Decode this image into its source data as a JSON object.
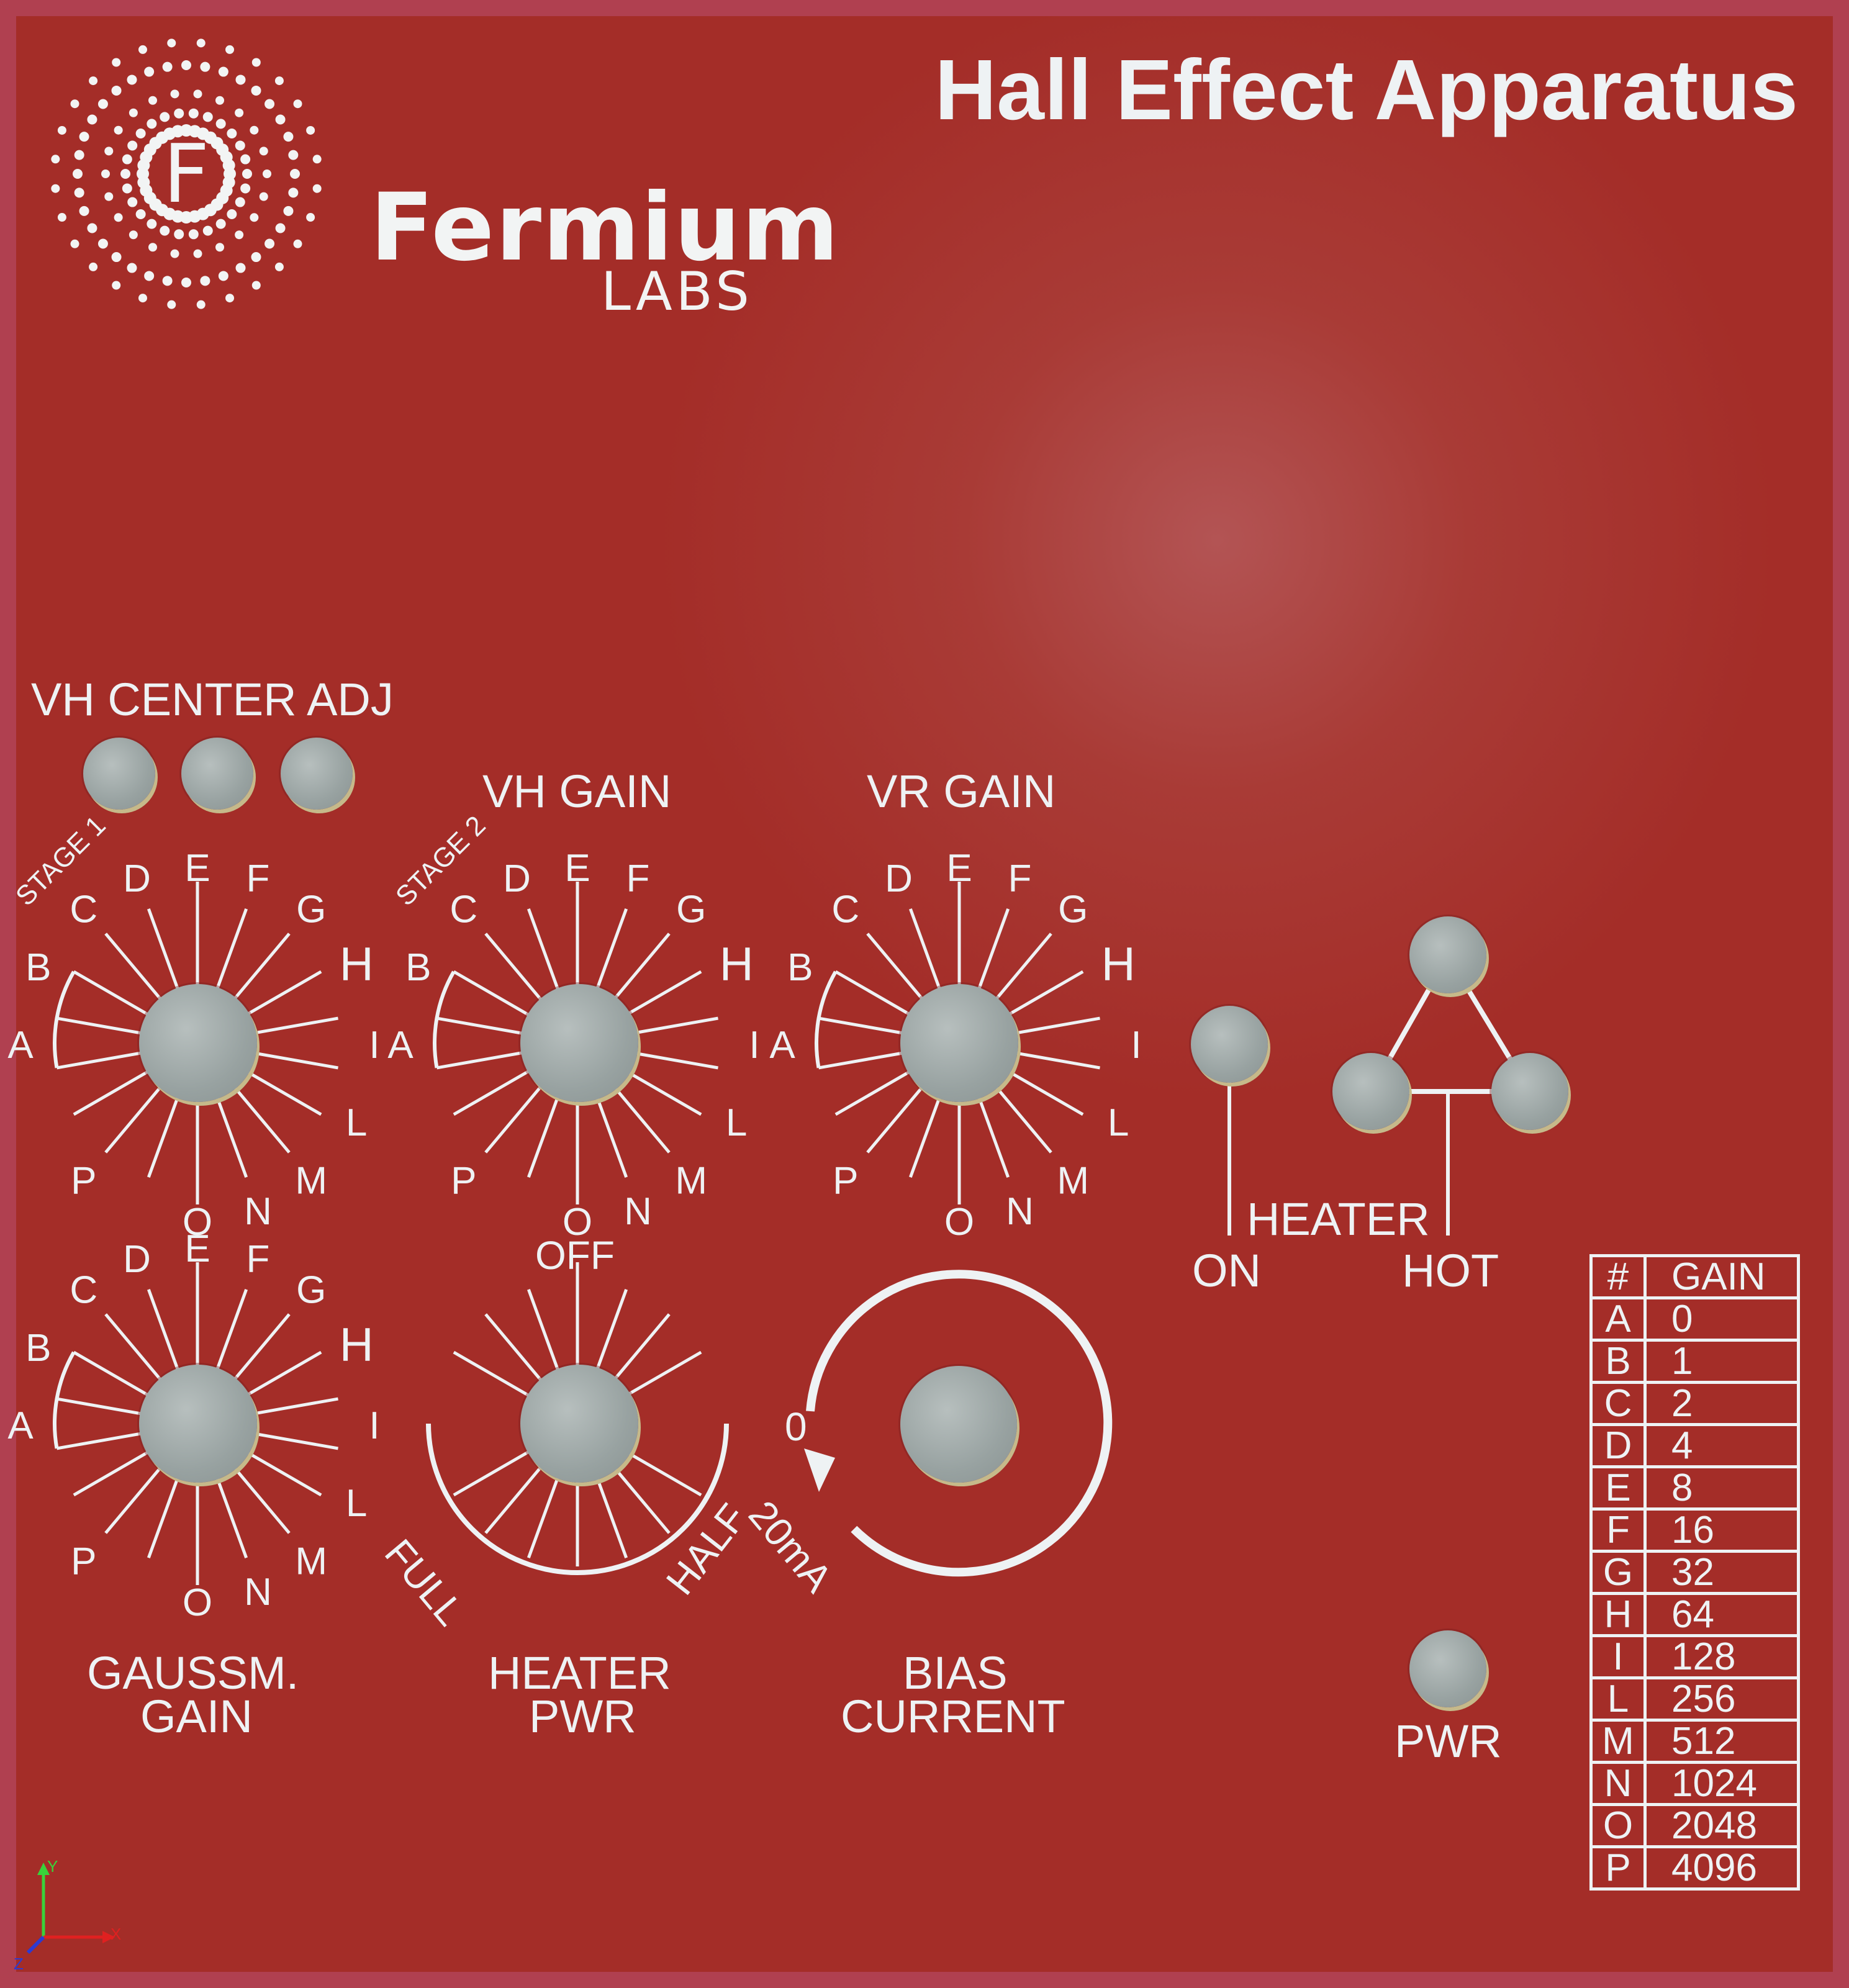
{
  "window": {
    "title": "Hall Effect Apparatus"
  },
  "brand": {
    "name": "Fermium",
    "sub": "LABS",
    "logo_letter": "F"
  },
  "labels": {
    "vh_center_adj": "VH CENTER ADJ",
    "vh_gain": "VH GAIN",
    "vr_gain": "VR GAIN",
    "stage1": "STAGE 1",
    "stage2": "STAGE 2",
    "heater": "HEATER",
    "on": "ON",
    "hot": "HOT",
    "gaussm_gain_1": "GAUSSM.",
    "gaussm_gain_2": "GAIN",
    "heater_pwr_1": "HEATER",
    "heater_pwr_2": "PWR",
    "bias_current_1": "BIAS",
    "bias_current_2": "CURRENT",
    "pwr": "PWR",
    "off": "OFF",
    "full": "FULL",
    "half": "HALF",
    "zero": "0",
    "twenty_ma": "20mA"
  },
  "dial_letters": [
    "A",
    "B",
    "C",
    "D",
    "E",
    "F",
    "G",
    "H",
    "I",
    "L",
    "M",
    "N",
    "O",
    "P"
  ],
  "gain_table": {
    "headers": [
      "#",
      "GAIN"
    ],
    "rows": [
      [
        "A",
        "0"
      ],
      [
        "B",
        "1"
      ],
      [
        "C",
        "2"
      ],
      [
        "D",
        "4"
      ],
      [
        "E",
        "8"
      ],
      [
        "F",
        "16"
      ],
      [
        "G",
        "32"
      ],
      [
        "H",
        "64"
      ],
      [
        "I",
        "128"
      ],
      [
        "L",
        "256"
      ],
      [
        "M",
        "512"
      ],
      [
        "N",
        "1024"
      ],
      [
        "O",
        "2048"
      ],
      [
        "P",
        "4096"
      ]
    ]
  },
  "axis": {
    "x": "X",
    "y": "Y",
    "z": "Z"
  },
  "colors": {
    "panel": "#a4302a",
    "border": "#b04050",
    "ink": "#eef2f4",
    "knob": "#9ea7a6"
  }
}
